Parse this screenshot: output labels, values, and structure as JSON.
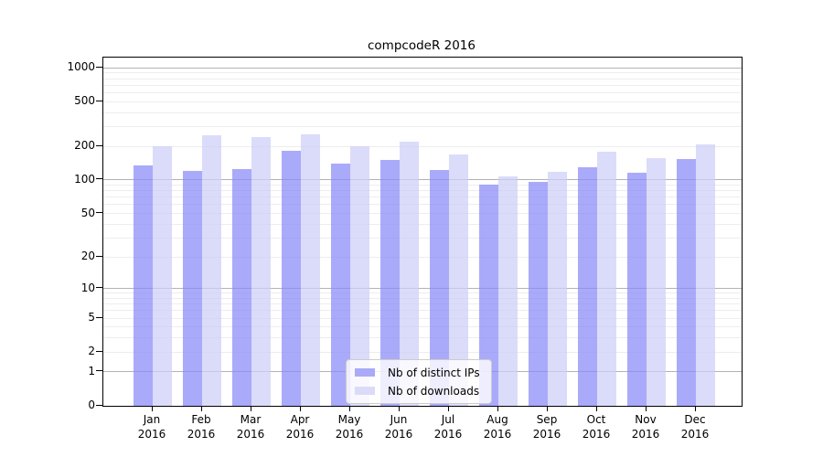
{
  "title": "compcodeR 2016",
  "chart_data": {
    "type": "bar",
    "title": "compcodeR 2016",
    "categories": [
      "Jan",
      "Feb",
      "Mar",
      "Apr",
      "May",
      "Jun",
      "Jul",
      "Aug",
      "Sep",
      "Oct",
      "Nov",
      "Dec"
    ],
    "year": "2016",
    "series": [
      {
        "name": "Nb of distinct IPs",
        "color": "#aaaaf9",
        "fill": "rgba(137,137,248,0.72)",
        "values": [
          135,
          120,
          125,
          182,
          140,
          150,
          123,
          91,
          96,
          130,
          116,
          154
        ]
      },
      {
        "name": "Nb of downloads",
        "color": "#dbdbf9",
        "fill": "rgba(205,205,248,0.72)",
        "values": [
          200,
          250,
          240,
          257,
          200,
          220,
          170,
          108,
          118,
          180,
          157,
          208
        ]
      }
    ],
    "y_ticks": [
      0,
      1,
      2,
      5,
      10,
      20,
      50,
      100,
      200,
      500,
      1000
    ],
    "y_scale": "log1p",
    "y_axis_max": 1230,
    "xlabel": "",
    "ylabel": "",
    "grid": {
      "orientation": "horizontal",
      "minor_color": "#ededed",
      "major_color": "#b2b2b2",
      "major_at_powers_of_ten": true
    },
    "legend_position": "lower center",
    "spine_color": "#000000"
  }
}
